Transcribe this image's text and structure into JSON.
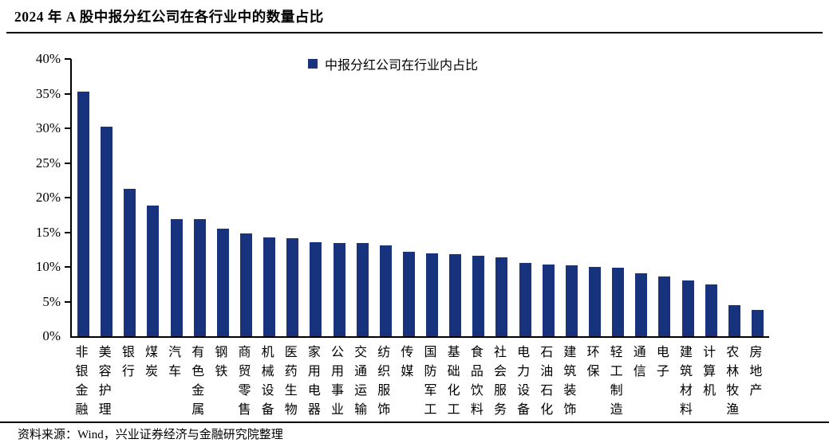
{
  "page": {
    "title": "2024 年 A 股中报分红公司在各行业中的数量占比",
    "source_note": "资料来源：Wind，兴业证券经济与金融研究院整理"
  },
  "legend": {
    "label": "中报分红公司在行业内占比",
    "marker_color": "#17337E"
  },
  "chart_data": {
    "type": "bar",
    "title": "2024 年 A 股中报分红公司在各行业中的数量占比",
    "legend": [
      "中报分红公司在行业内占比"
    ],
    "legend_position": "top-center",
    "categories": [
      "非银金融",
      "美容护理",
      "银行",
      "煤炭",
      "汽车",
      "有色金属",
      "钢铁",
      "商贸零售",
      "机械设备",
      "医药生物",
      "家用电器",
      "公用事业",
      "交通运输",
      "纺织服饰",
      "传媒",
      "国防军工",
      "基础化工",
      "食品饮料",
      "社会服务",
      "电力设备",
      "石油石化",
      "建筑装饰",
      "环保",
      "轻工制造",
      "通信",
      "电子",
      "建筑材料",
      "计算机",
      "农林牧渔",
      "房地产"
    ],
    "values": [
      35.3,
      30.2,
      21.3,
      18.9,
      16.9,
      16.9,
      15.5,
      14.8,
      14.2,
      14.1,
      13.6,
      13.5,
      13.4,
      13.1,
      12.2,
      12.0,
      11.8,
      11.6,
      11.4,
      10.6,
      10.4,
      10.2,
      10.0,
      9.9,
      9.1,
      8.6,
      8.1,
      7.5,
      4.5,
      3.8
    ],
    "xlabel": "",
    "ylabel": "",
    "ylim": [
      0,
      40
    ],
    "yticks": [
      0,
      5,
      10,
      15,
      20,
      25,
      30,
      35,
      40
    ],
    "ytick_labels": [
      "0%",
      "5%",
      "10%",
      "15%",
      "20%",
      "25%",
      "30%",
      "35%",
      "40%"
    ],
    "bar_color": "#17337E",
    "axis_color": "#000000",
    "grid": false
  }
}
